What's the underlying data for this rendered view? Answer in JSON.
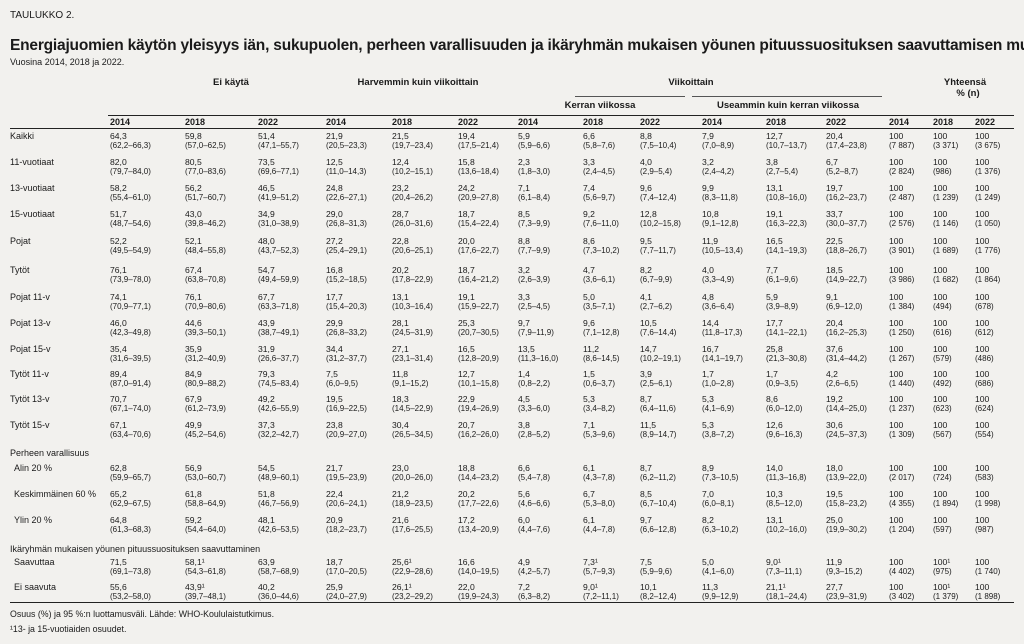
{
  "taulukko_label": "TAULUKKO 2.",
  "title": "Energiajuomien käytön yleisyys iän, sukupuolen, perheen varallisuuden ja ikäryhmän mukaisen yöunen pituussuosituksen saavuttamisen mukaan",
  "subtitle": "Vuosina 2014, 2018 ja 2022.",
  "headers": {
    "ei_kayta": "Ei käytä",
    "harvemmin": "Harvemmin kuin viikoittain",
    "viikoittain": "Viikoittain",
    "yhteensa_1": "Yhteensä",
    "yhteensa_2": "% (n)",
    "kerran": "Kerran viikossa",
    "useammin": "Useammin kuin kerran viikossa"
  },
  "years": [
    "2014",
    "2018",
    "2022",
    "2014",
    "2018",
    "2022",
    "2014",
    "2018",
    "2022",
    "2014",
    "2018",
    "2022",
    "2014",
    "2018",
    "2022"
  ],
  "groups": {
    "perhe": "Perheen varallisuus",
    "ikaryhma": "Ikäryhmän mukaisen yöunen pituussuosituksen saavuttaminen"
  },
  "rows": [
    {
      "label": "Kaikki",
      "cells": [
        [
          "64,3",
          "(62,2–66,3)"
        ],
        [
          "59,8",
          "(57,0–62,5)"
        ],
        [
          "51,4",
          "(47,1–55,7)"
        ],
        [
          "21,9",
          "(20,5–23,3)"
        ],
        [
          "21,5",
          "(19,7–23,4)"
        ],
        [
          "19,4",
          "(17,5–21,4)"
        ],
        [
          "5,9",
          "(5,9–6,6)"
        ],
        [
          "6,6",
          "(5,8–7,6)"
        ],
        [
          "8,8",
          "(7,5–10,4)"
        ],
        [
          "7,9",
          "(7,0–8,9)"
        ],
        [
          "12,7",
          "(10,7–13,7)"
        ],
        [
          "20,4",
          "(17,4–23,8)"
        ],
        [
          "100",
          "(7 887)"
        ],
        [
          "100",
          "(3 371)"
        ],
        [
          "100",
          "(3 675)"
        ]
      ]
    },
    {
      "label": "11-vuotiaat",
      "cells": [
        [
          "82,0",
          "(79,7–84,0)"
        ],
        [
          "80,5",
          "(77,0–83,6)"
        ],
        [
          "73,5",
          "(69,6–77,1)"
        ],
        [
          "12,5",
          "(11,0–14,3)"
        ],
        [
          "12,4",
          "(10,2–15,1)"
        ],
        [
          "15,8",
          "(13,6–18,4)"
        ],
        [
          "2,3",
          "(1,8–3,0)"
        ],
        [
          "3,3",
          "(2,4–4,5)"
        ],
        [
          "4,0",
          "(2,9–5,4)"
        ],
        [
          "3,2",
          "(2,4–4,2)"
        ],
        [
          "3,8",
          "(2,7–5,4)"
        ],
        [
          "6,7",
          "(5,2–8,7)"
        ],
        [
          "100",
          "(2 824)"
        ],
        [
          "100",
          "(986)"
        ],
        [
          "100",
          "(1 376)"
        ]
      ]
    },
    {
      "label": "13-vuotiaat",
      "cells": [
        [
          "58,2",
          "(55,4–61,0)"
        ],
        [
          "56,2",
          "(51,7–60,7)"
        ],
        [
          "46,5",
          "(41,9–51,2)"
        ],
        [
          "24,8",
          "(22,6–27,1)"
        ],
        [
          "23,2",
          "(20,4–26,2)"
        ],
        [
          "24,2",
          "(20,9–27,8)"
        ],
        [
          "7,1",
          "(6,1–8,4)"
        ],
        [
          "7,4",
          "(5,6–9,7)"
        ],
        [
          "9,6",
          "(7,4–12,4)"
        ],
        [
          "9,9",
          "(8,3–11,8)"
        ],
        [
          "13,1",
          "(10,8–16,0)"
        ],
        [
          "19,7",
          "(16,2–23,7)"
        ],
        [
          "100",
          "(2 487)"
        ],
        [
          "100",
          "(1 239)"
        ],
        [
          "100",
          "(1 249)"
        ]
      ]
    },
    {
      "label": "15-vuotiaat",
      "cells": [
        [
          "51,7",
          "(48,7–54,6)"
        ],
        [
          "43,0",
          "(39,8–46,2)"
        ],
        [
          "34,9",
          "(31,0–38,9)"
        ],
        [
          "29,0",
          "(26,8–31,3)"
        ],
        [
          "28,7",
          "(26,0–31,6)"
        ],
        [
          "18,7",
          "(15,4–22,4)"
        ],
        [
          "8,5",
          "(7,3–9,9)"
        ],
        [
          "9,2",
          "(7,6–11,0)"
        ],
        [
          "12,8",
          "(10,2–15,8)"
        ],
        [
          "10,8",
          "(9,1–12,8)"
        ],
        [
          "19,1",
          "(16,3–22,3)"
        ],
        [
          "33,7",
          "(30,0–37,7)"
        ],
        [
          "100",
          "(2 576)"
        ],
        [
          "100",
          "(1 146)"
        ],
        [
          "100",
          "(1 050)"
        ]
      ]
    },
    {
      "label": "Pojat",
      "cells": [
        [
          "52,2",
          "(49,5–54,9)"
        ],
        [
          "52,1",
          "(48,4–55,8)"
        ],
        [
          "48,0",
          "(43,7–52,3)"
        ],
        [
          "27,2",
          "(25,4–29,1)"
        ],
        [
          "22,8",
          "(20,6–25,1)"
        ],
        [
          "20,0",
          "(17,6–22,7)"
        ],
        [
          "8,8",
          "(7,7–9,9)"
        ],
        [
          "8,6",
          "(7,3–10,2)"
        ],
        [
          "9,5",
          "(7,7–11,7)"
        ],
        [
          "11,9",
          "(10,5–13,4)"
        ],
        [
          "16,5",
          "(14,1–19,3)"
        ],
        [
          "22,5",
          "(18,8–26,7)"
        ],
        [
          "100",
          "(3 901)"
        ],
        [
          "100",
          "(1 689)"
        ],
        [
          "100",
          "(1 776)"
        ]
      ]
    },
    {
      "label": "Tytöt",
      "cells": [
        [
          "76,1",
          "(73,9–78,0)"
        ],
        [
          "67,4",
          "(63,8–70,8)"
        ],
        [
          "54,7",
          "(49,4–59,9)"
        ],
        [
          "16,8",
          "(15,2–18,5)"
        ],
        [
          "20,2",
          "(17,8–22,9)"
        ],
        [
          "18,7",
          "(16,4–21,2)"
        ],
        [
          "3,2",
          "(2,6–3,9)"
        ],
        [
          "4,7",
          "(3,6–6,1)"
        ],
        [
          "8,2",
          "(6,7–9,9)"
        ],
        [
          "4,0",
          "(3,3–4,9)"
        ],
        [
          "7,7",
          "(6,1–9,6)"
        ],
        [
          "18,5",
          "(14,9–22,7)"
        ],
        [
          "100",
          "(3 986)"
        ],
        [
          "100",
          "(1 682)"
        ],
        [
          "100",
          "(1 864)"
        ]
      ]
    },
    {
      "label": "Pojat 11-v",
      "cells": [
        [
          "74,1",
          "(70,9–77,1)"
        ],
        [
          "76,1",
          "(70,9–80,6)"
        ],
        [
          "67,7",
          "(63,3–71,8)"
        ],
        [
          "17,7",
          "(15,4–20,3)"
        ],
        [
          "13,1",
          "(10,3–16,4)"
        ],
        [
          "19,1",
          "(15,9–22,7)"
        ],
        [
          "3,3",
          "(2,5–4,5)"
        ],
        [
          "5,0",
          "(3,5–7,1)"
        ],
        [
          "4,1",
          "(2,7–6,2)"
        ],
        [
          "4,8",
          "(3,6–6,4)"
        ],
        [
          "5,9",
          "(3,9–8,9)"
        ],
        [
          "9,1",
          "(6,9–12,0)"
        ],
        [
          "100",
          "(1 384)"
        ],
        [
          "100",
          "(494)"
        ],
        [
          "100",
          "(678)"
        ]
      ]
    },
    {
      "label": "Pojat 13-v",
      "cells": [
        [
          "46,0",
          "(42,3–49,8)"
        ],
        [
          "44,6",
          "(39,3–50,1)"
        ],
        [
          "43,9",
          "(38,7–49,1)"
        ],
        [
          "29,9",
          "(26,8–33,2)"
        ],
        [
          "28,1",
          "(24,5–31,9)"
        ],
        [
          "25,3",
          "(20,7–30,5)"
        ],
        [
          "9,7",
          "(7,9–11,9)"
        ],
        [
          "9,6",
          "(7,1–12,8)"
        ],
        [
          "10,5",
          "(7,6–14,4)"
        ],
        [
          "14,4",
          "(11,8–17,3)"
        ],
        [
          "17,7",
          "(14,1–22,1)"
        ],
        [
          "20,4",
          "(16,2–25,3)"
        ],
        [
          "100",
          "(1 250)"
        ],
        [
          "100",
          "(616)"
        ],
        [
          "100",
          "(612)"
        ]
      ]
    },
    {
      "label": "Pojat 15-v",
      "cells": [
        [
          "35,4",
          "(31,6–39,5)"
        ],
        [
          "35,9",
          "(31,2–40,9)"
        ],
        [
          "31,9",
          "(26,6–37,7)"
        ],
        [
          "34,4",
          "(31,2–37,7)"
        ],
        [
          "27,1",
          "(23,1–31,4)"
        ],
        [
          "16,5",
          "(12,8–20,9)"
        ],
        [
          "13,5",
          "(11,3–16,0)"
        ],
        [
          "11,2",
          "(8,6–14,5)"
        ],
        [
          "14,7",
          "(10,2–19,1)"
        ],
        [
          "16,7",
          "(14,1–19,7)"
        ],
        [
          "25,8",
          "(21,3–30,8)"
        ],
        [
          "37,6",
          "(31,4–44,2)"
        ],
        [
          "100",
          "(1 267)"
        ],
        [
          "100",
          "(579)"
        ],
        [
          "100",
          "(486)"
        ]
      ]
    },
    {
      "label": "Tytöt 11-v",
      "cells": [
        [
          "89,4",
          "(87,0–91,4)"
        ],
        [
          "84,9",
          "(80,9–88,2)"
        ],
        [
          "79,3",
          "(74,5–83,4)"
        ],
        [
          "7,5",
          "(6,0–9,5)"
        ],
        [
          "11,8",
          "(9,1–15,2)"
        ],
        [
          "12,7",
          "(10,1–15,8)"
        ],
        [
          "1,4",
          "(0,8–2,2)"
        ],
        [
          "1,5",
          "(0,6–3,7)"
        ],
        [
          "3,9",
          "(2,5–6,1)"
        ],
        [
          "1,7",
          "(1,0–2,8)"
        ],
        [
          "1,7",
          "(0,9–3,5)"
        ],
        [
          "4,2",
          "(2,6–6,5)"
        ],
        [
          "100",
          "(1 440)"
        ],
        [
          "100",
          "(492)"
        ],
        [
          "100",
          "(686)"
        ]
      ]
    },
    {
      "label": "Tytöt 13-v",
      "cells": [
        [
          "70,7",
          "(67,1–74,0)"
        ],
        [
          "67,9",
          "(61,2–73,9)"
        ],
        [
          "49,2",
          "(42,6–55,9)"
        ],
        [
          "19,5",
          "(16,9–22,5)"
        ],
        [
          "18,3",
          "(14,5–22,9)"
        ],
        [
          "22,9",
          "(19,4–26,9)"
        ],
        [
          "4,5",
          "(3,3–6,0)"
        ],
        [
          "5,3",
          "(3,4–8,2)"
        ],
        [
          "8,7",
          "(6,4–11,6)"
        ],
        [
          "5,3",
          "(4,1–6,9)"
        ],
        [
          "8,6",
          "(6,0–12,0)"
        ],
        [
          "19,2",
          "(14,4–25,0)"
        ],
        [
          "100",
          "(1 237)"
        ],
        [
          "100",
          "(623)"
        ],
        [
          "100",
          "(624)"
        ]
      ]
    },
    {
      "label": "Tytöt 15-v",
      "cells": [
        [
          "67,1",
          "(63,4–70,6)"
        ],
        [
          "49,9",
          "(45,2–54,6)"
        ],
        [
          "37,3",
          "(32,2–42,7)"
        ],
        [
          "23,8",
          "(20,9–27,0)"
        ],
        [
          "30,4",
          "(26,5–34,5)"
        ],
        [
          "20,7",
          "(16,2–26,0)"
        ],
        [
          "3,8",
          "(2,8–5,2)"
        ],
        [
          "7,1",
          "(5,3–9,6)"
        ],
        [
          "11,5",
          "(8,9–14,7)"
        ],
        [
          "5,3",
          "(3,8–7,2)"
        ],
        [
          "12,6",
          "(9,6–16,3)"
        ],
        [
          "30,6",
          "(24,5–37,3)"
        ],
        [
          "100",
          "(1 309)"
        ],
        [
          "100",
          "(567)"
        ],
        [
          "100",
          "(554)"
        ]
      ]
    },
    {
      "label": "Alin 20 %",
      "cells": [
        [
          "62,8",
          "(59,9–65,7)"
        ],
        [
          "56,9",
          "(53,0–60,7)"
        ],
        [
          "54,5",
          "(48,9–60,1)"
        ],
        [
          "21,7",
          "(19,5–23,9)"
        ],
        [
          "23,0",
          "(20,0–26,0)"
        ],
        [
          "18,8",
          "(14,4–23,2)"
        ],
        [
          "6,6",
          "(5,4–7,8)"
        ],
        [
          "6,1",
          "(4,3–7,8)"
        ],
        [
          "8,7",
          "(6,2–11,2)"
        ],
        [
          "8,9",
          "(7,3–10,5)"
        ],
        [
          "14,0",
          "(11,3–16,8)"
        ],
        [
          "18,0",
          "(13,9–22,0)"
        ],
        [
          "100",
          "(2 017)"
        ],
        [
          "100",
          "(724)"
        ],
        [
          "100",
          "(583)"
        ]
      ]
    },
    {
      "label": "Keskimmäinen 60 %",
      "cells": [
        [
          "65,2",
          "(62,9–67,5)"
        ],
        [
          "61,8",
          "(58,8–64,9)"
        ],
        [
          "51,8",
          "(46,7–56,9)"
        ],
        [
          "22,4",
          "(20,6–24,1)"
        ],
        [
          "21,2",
          "(18,9–23,5)"
        ],
        [
          "20,2",
          "(17,7–22,6)"
        ],
        [
          "5,6",
          "(4,6–6,6)"
        ],
        [
          "6,7",
          "(5,3–8,0)"
        ],
        [
          "8,5",
          "(6,7–10,4)"
        ],
        [
          "7,0",
          "(6,0–8,1)"
        ],
        [
          "10,3",
          "(8,5–12,0)"
        ],
        [
          "19,5",
          "(15,8–23,2)"
        ],
        [
          "100",
          "(4 355)"
        ],
        [
          "100",
          "(1 894)"
        ],
        [
          "100",
          "(1 998)"
        ]
      ]
    },
    {
      "label": "Ylin 20 %",
      "cells": [
        [
          "64,8",
          "(61,3–68,3)"
        ],
        [
          "59,2",
          "(54,4–64,0)"
        ],
        [
          "48,1",
          "(42,6–53,5)"
        ],
        [
          "20,9",
          "(18,2–23,7)"
        ],
        [
          "21,6",
          "(17,6–25,5)"
        ],
        [
          "17,2",
          "(13,4–20,9)"
        ],
        [
          "6,0",
          "(4,4–7,6)"
        ],
        [
          "6,1",
          "(4,4–7,8)"
        ],
        [
          "9,7",
          "(6,6–12,8)"
        ],
        [
          "8,2",
          "(6,3–10,2)"
        ],
        [
          "13,1",
          "(10,2–16,0)"
        ],
        [
          "25,0",
          "(19,9–30,2)"
        ],
        [
          "100",
          "(1 204)"
        ],
        [
          "100",
          "(597)"
        ],
        [
          "100",
          "(987)"
        ]
      ]
    },
    {
      "label": "Saavuttaa",
      "cells": [
        [
          "71,5",
          "(69,1–73,8)"
        ],
        [
          "58,1¹",
          "(54,3–61,8)"
        ],
        [
          "63,9",
          "(58,7–68,9)"
        ],
        [
          "18,7",
          "(17,0–20,5)"
        ],
        [
          "25,6¹",
          "(22,9–28,6)"
        ],
        [
          "16,6",
          "(14,0–19,5)"
        ],
        [
          "4,9",
          "(4,2–5,7)"
        ],
        [
          "7,3¹",
          "(5,7–9,3)"
        ],
        [
          "7,5",
          "(5,9–9,6)"
        ],
        [
          "5,0",
          "(4,1–6,0)"
        ],
        [
          "9,0¹",
          "(7,3–11,1)"
        ],
        [
          "11,9",
          "(9,3–15,2)"
        ],
        [
          "100",
          "(4 402)"
        ],
        [
          "100¹",
          "(975)"
        ],
        [
          "100",
          "(1 740)"
        ]
      ]
    },
    {
      "label": "Ei saavuta",
      "cells": [
        [
          "55,6",
          "(53,2–58,0)"
        ],
        [
          "43,9¹",
          "(39,7–48,1)"
        ],
        [
          "40,2",
          "(36,0–44,6)"
        ],
        [
          "25,9",
          "(24,0–27,9)"
        ],
        [
          "26,1¹",
          "(23,2–29,2)"
        ],
        [
          "22,0",
          "(19,9–24,3)"
        ],
        [
          "7,2",
          "(6,3–8,2)"
        ],
        [
          "9,0¹",
          "(7,2–11,1)"
        ],
        [
          "10,1",
          "(8,2–12,4)"
        ],
        [
          "11,3",
          "(9,9–12,9)"
        ],
        [
          "21,1¹",
          "(18,1–24,4)"
        ],
        [
          "27,7",
          "(23,9–31,9)"
        ],
        [
          "100",
          "(3 402)"
        ],
        [
          "100¹",
          "(1 379)"
        ],
        [
          "100",
          "(1 898)"
        ]
      ]
    }
  ],
  "footnotes": {
    "note1": "Osuus (%) ja 95 %:n luottamusväli. Lähde: WHO-Koululaistutkimus.",
    "note2": "¹13- ja 15-vuotiaiden osuudet."
  }
}
